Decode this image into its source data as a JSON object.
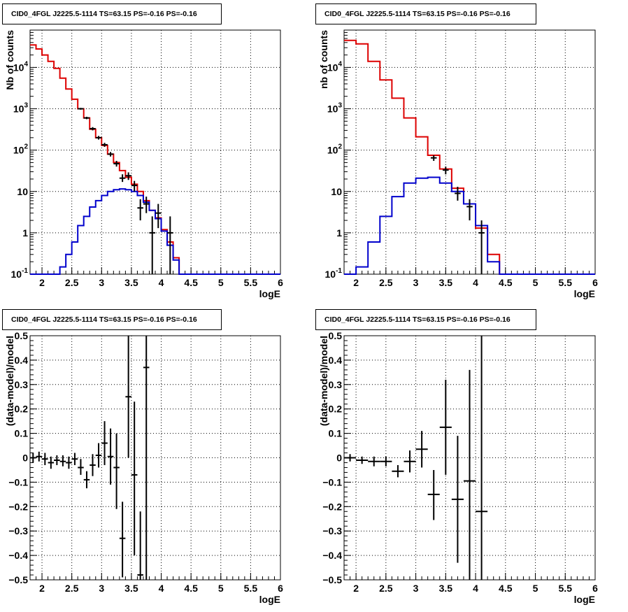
{
  "chart_data": [
    {
      "type": "line",
      "title": "CID0_4FGL J2225.5-1114 TS=63.15 PS=-0.16 PS=-0.16",
      "xlabel": "logE",
      "ylabel": "Nb of counts",
      "xlim": [
        1.8,
        6.0
      ],
      "ylim": [
        0.1,
        80000
      ],
      "yscale": "log",
      "grid": true,
      "x_ticks": [
        "2",
        "2.5",
        "3",
        "3.5",
        "4",
        "4.5",
        "5",
        "5.5",
        "6"
      ],
      "y_ticks": [
        "10^-1",
        "1",
        "10",
        "10^2",
        "10^3",
        "10^4"
      ],
      "bin_edges": [
        1.8,
        1.9,
        2.0,
        2.1,
        2.2,
        2.3,
        2.4,
        2.5,
        2.6,
        2.7,
        2.8,
        2.9,
        3.0,
        3.1,
        3.2,
        3.3,
        3.4,
        3.5,
        3.6,
        3.7,
        3.8,
        3.9,
        4.0,
        4.1,
        4.2,
        4.3,
        4.4,
        4.5,
        4.6,
        4.7,
        4.8,
        4.9,
        5.0,
        5.1,
        5.2,
        5.3,
        5.4,
        5.5,
        5.6,
        5.7,
        5.8,
        5.9,
        6.0
      ],
      "series": [
        {
          "color": "#dd0000",
          "style": "step",
          "values": [
            35000,
            28000,
            20000,
            14000,
            9500,
            5500,
            3000,
            1700,
            1000,
            600,
            320,
            200,
            130,
            80,
            50,
            32,
            22,
            15,
            10,
            6,
            3.5,
            2.3,
            1.2,
            0.6,
            0.25,
            0.1,
            0.1,
            0.1,
            0.1,
            0.1,
            0.1,
            0.1,
            0.1,
            0.1,
            0.1,
            0.1,
            0.1,
            0.1,
            0.1,
            0.1,
            0.1,
            0.1
          ]
        },
        {
          "color": "#0000cc",
          "style": "step",
          "values": [
            0.1,
            0.1,
            0.1,
            0.1,
            0.1,
            0.15,
            0.3,
            0.6,
            1.5,
            2.5,
            4.2,
            6.0,
            8.0,
            10.0,
            11.0,
            11.5,
            11.0,
            10.0,
            8.0,
            5.5,
            3.5,
            2.2,
            1.1,
            0.5,
            0.22,
            0.1,
            0.1,
            0.1,
            0.1,
            0.1,
            0.1,
            0.1,
            0.1,
            0.1,
            0.1,
            0.1,
            0.1,
            0.1,
            0.1,
            0.1,
            0.1,
            0.1
          ]
        }
      ],
      "points": [
        {
          "x": 2.65,
          "y": 1000,
          "ylo": 950,
          "yhi": 1050
        },
        {
          "x": 2.75,
          "y": 600,
          "ylo": 560,
          "yhi": 640
        },
        {
          "x": 2.85,
          "y": 330,
          "ylo": 300,
          "yhi": 360
        },
        {
          "x": 2.95,
          "y": 200,
          "ylo": 180,
          "yhi": 220
        },
        {
          "x": 3.05,
          "y": 135,
          "ylo": 120,
          "yhi": 150
        },
        {
          "x": 3.15,
          "y": 80,
          "ylo": 70,
          "yhi": 90
        },
        {
          "x": 3.25,
          "y": 47,
          "ylo": 40,
          "yhi": 55
        },
        {
          "x": 3.35,
          "y": 21,
          "ylo": 17,
          "yhi": 26
        },
        {
          "x": 3.45,
          "y": 24,
          "ylo": 19,
          "yhi": 29
        },
        {
          "x": 3.55,
          "y": 14,
          "ylo": 10,
          "yhi": 18
        },
        {
          "x": 3.65,
          "y": 4.0,
          "ylo": 2.0,
          "yhi": 6.5
        },
        {
          "x": 3.75,
          "y": 5.0,
          "ylo": 3.0,
          "yhi": 7.5
        },
        {
          "x": 3.85,
          "y": 1.0,
          "ylo": 0.1,
          "yhi": 2.5
        },
        {
          "x": 3.95,
          "y": 3.0,
          "ylo": 1.3,
          "yhi": 5.0
        },
        {
          "x": 4.15,
          "y": 1.0,
          "ylo": 0.1,
          "yhi": 2.5
        }
      ]
    },
    {
      "type": "line",
      "title": "CID0_4FGL J2225.5-1114 TS=63.15 PS=-0.16 PS=-0.16",
      "xlabel": "logE",
      "ylabel": "nb of counts",
      "xlim": [
        1.8,
        6.0
      ],
      "ylim": [
        0.1,
        80000
      ],
      "yscale": "log",
      "grid": true,
      "x_ticks": [
        "2",
        "2.5",
        "3",
        "3.5",
        "4",
        "4.5",
        "5",
        "5.5",
        "6"
      ],
      "y_ticks": [
        "10^-1",
        "1",
        "10",
        "10^2",
        "10^3",
        "10^4"
      ],
      "bin_edges": [
        1.8,
        2.0,
        2.2,
        2.4,
        2.6,
        2.8,
        3.0,
        3.2,
        3.4,
        3.6,
        3.8,
        4.0,
        4.2,
        4.4,
        4.6,
        4.8,
        5.0,
        5.2,
        5.4,
        5.6,
        5.8,
        6.0
      ],
      "series": [
        {
          "color": "#dd0000",
          "style": "step",
          "values": [
            45000,
            37000,
            14000,
            5000,
            1800,
            600,
            210,
            75,
            35,
            12,
            5,
            1.3,
            0.3,
            0.1,
            0.1,
            0.1,
            0.1,
            0.1,
            0.1,
            0.1,
            0.1
          ]
        },
        {
          "color": "#0000cc",
          "style": "step",
          "values": [
            0.1,
            0.15,
            0.6,
            2.5,
            7.5,
            16,
            21,
            22,
            16,
            10,
            5,
            1.5,
            0.2,
            0.1,
            0.1,
            0.1,
            0.1,
            0.1,
            0.1,
            0.1,
            0.1
          ]
        }
      ],
      "points": [
        {
          "x": 3.3,
          "y": 65,
          "ylo": 55,
          "yhi": 75
        },
        {
          "x": 3.5,
          "y": 33,
          "ylo": 26,
          "yhi": 40
        },
        {
          "x": 3.7,
          "y": 9,
          "ylo": 6,
          "yhi": 13
        },
        {
          "x": 3.9,
          "y": 4.3,
          "ylo": 2.0,
          "yhi": 6.5
        },
        {
          "x": 4.1,
          "y": 1.0,
          "ylo": 0.1,
          "yhi": 2.0
        }
      ]
    },
    {
      "type": "scatter",
      "title": "CID0_4FGL J2225.5-1114 TS=63.15 PS=-0.16 PS=-0.16",
      "xlabel": "logE",
      "ylabel": "(data-model)/model",
      "xlim": [
        1.8,
        6.0
      ],
      "ylim": [
        -0.5,
        0.5
      ],
      "grid": true,
      "x_ticks": [
        "2",
        "2.5",
        "3",
        "3.5",
        "4",
        "4.5",
        "5",
        "5.5",
        "6"
      ],
      "y_ticks": [
        "−0.5",
        "−0.4",
        "−0.3",
        "−0.2",
        "−0.1",
        "0",
        "0.1",
        "0.2",
        "0.3",
        "0.4",
        "0.5"
      ],
      "xerr": 0.05,
      "points": [
        {
          "x": 1.85,
          "y": 0.0,
          "ylo": -0.02,
          "yhi": 0.02
        },
        {
          "x": 1.95,
          "y": 0.005,
          "ylo": -0.015,
          "yhi": 0.025
        },
        {
          "x": 2.05,
          "y": -0.005,
          "ylo": -0.03,
          "yhi": 0.02
        },
        {
          "x": 2.15,
          "y": -0.02,
          "ylo": -0.045,
          "yhi": 0.005
        },
        {
          "x": 2.25,
          "y": -0.01,
          "ylo": -0.03,
          "yhi": 0.01
        },
        {
          "x": 2.35,
          "y": -0.015,
          "ylo": -0.035,
          "yhi": 0.01
        },
        {
          "x": 2.45,
          "y": -0.02,
          "ylo": -0.045,
          "yhi": 0.005
        },
        {
          "x": 2.55,
          "y": -0.005,
          "ylo": -0.03,
          "yhi": 0.02
        },
        {
          "x": 2.65,
          "y": -0.04,
          "ylo": -0.07,
          "yhi": -0.005
        },
        {
          "x": 2.75,
          "y": -0.09,
          "ylo": -0.125,
          "yhi": -0.055
        },
        {
          "x": 2.85,
          "y": -0.03,
          "ylo": -0.075,
          "yhi": 0.015
        },
        {
          "x": 2.95,
          "y": 0.01,
          "ylo": -0.04,
          "yhi": 0.06
        },
        {
          "x": 3.05,
          "y": 0.06,
          "ylo": -0.03,
          "yhi": 0.15
        },
        {
          "x": 3.15,
          "y": 0.005,
          "ylo": -0.11,
          "yhi": 0.12
        },
        {
          "x": 3.25,
          "y": -0.04,
          "ylo": -0.21,
          "yhi": 0.1
        },
        {
          "x": 3.35,
          "y": -0.33,
          "ylo": -0.49,
          "yhi": -0.18
        },
        {
          "x": 3.45,
          "y": 0.25,
          "ylo": 0.0,
          "yhi": 0.5
        },
        {
          "x": 3.55,
          "y": -0.07,
          "ylo": -0.4,
          "yhi": 0.23
        },
        {
          "x": 3.65,
          "y": -0.48,
          "ylo": -0.5,
          "yhi": -0.22
        },
        {
          "x": 3.75,
          "y": 0.37,
          "ylo": -0.5,
          "yhi": 0.5
        }
      ]
    },
    {
      "type": "scatter",
      "title": "CID0_4FGL J2225.5-1114 TS=63.15 PS=-0.16 PS=-0.16",
      "xlabel": "logE",
      "ylabel": "(data-model)/model",
      "xlim": [
        1.8,
        6.0
      ],
      "ylim": [
        -0.5,
        0.5
      ],
      "grid": true,
      "x_ticks": [
        "2",
        "2.5",
        "3",
        "3.5",
        "4",
        "4.5",
        "5",
        "5.5",
        "6"
      ],
      "y_ticks": [
        "−0.5",
        "−0.4",
        "−0.3",
        "−0.2",
        "−0.1",
        "0",
        "0.1",
        "0.2",
        "0.3",
        "0.4",
        "0.5"
      ],
      "xerr": 0.1,
      "points": [
        {
          "x": 1.9,
          "y": 0.0,
          "ylo": -0.015,
          "yhi": 0.015
        },
        {
          "x": 2.1,
          "y": -0.01,
          "ylo": -0.025,
          "yhi": 0.005
        },
        {
          "x": 2.3,
          "y": -0.015,
          "ylo": -0.035,
          "yhi": 0.005
        },
        {
          "x": 2.5,
          "y": -0.015,
          "ylo": -0.035,
          "yhi": 0.005
        },
        {
          "x": 2.7,
          "y": -0.055,
          "ylo": -0.08,
          "yhi": -0.03
        },
        {
          "x": 2.9,
          "y": -0.015,
          "ylo": -0.06,
          "yhi": 0.03
        },
        {
          "x": 3.1,
          "y": 0.035,
          "ylo": -0.04,
          "yhi": 0.11
        },
        {
          "x": 3.3,
          "y": -0.15,
          "ylo": -0.255,
          "yhi": -0.05
        },
        {
          "x": 3.5,
          "y": 0.125,
          "ylo": -0.07,
          "yhi": 0.32
        },
        {
          "x": 3.7,
          "y": -0.17,
          "ylo": -0.43,
          "yhi": 0.09
        },
        {
          "x": 3.9,
          "y": -0.095,
          "ylo": -0.5,
          "yhi": 0.36
        },
        {
          "x": 4.1,
          "y": -0.22,
          "ylo": -0.5,
          "yhi": 0.5
        }
      ]
    }
  ]
}
